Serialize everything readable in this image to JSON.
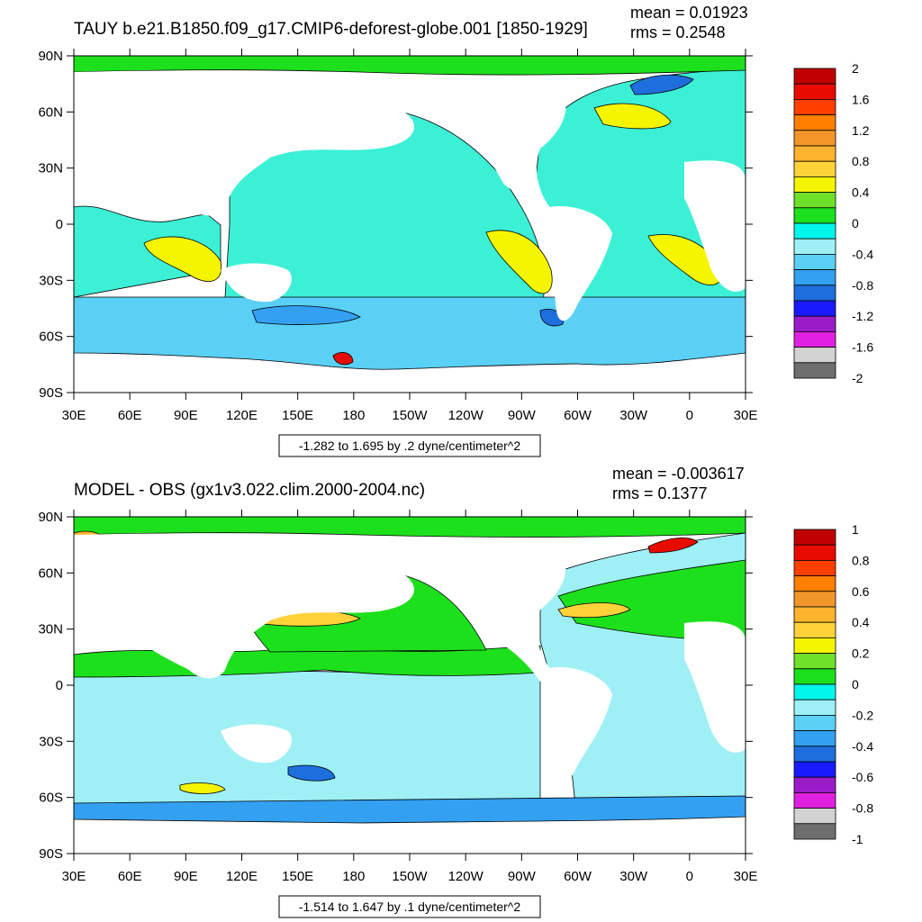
{
  "colors": {
    "scale": [
      "#6e6e6e",
      "#d2d2d2",
      "#e020e0",
      "#9a1cc8",
      "#1a1aff",
      "#1e6edd",
      "#33a0f2",
      "#5ad0f5",
      "#9ef0f5",
      "#00f5eb",
      "#1de01d",
      "#6fe12a",
      "#f5f500",
      "#ffd23a",
      "#fbb42e",
      "#f3962a",
      "#ff7f00",
      "#ff3f00",
      "#e80c00",
      "#c00000"
    ],
    "ocean": "#3cf0d6",
    "land": "#ffffff"
  },
  "panels": [
    {
      "title": "TAUY b.e21.B1850.f09_g17.CMIP6-deforest-globe.001 [1850-1929]",
      "mean": "mean = 0.01923",
      "rms": "rms = 0.2548",
      "range_label": "-1.282 to 1.695 by .2 dyne/centimeter^2",
      "colorbar_labels": [
        "2",
        "1.6",
        "1.2",
        "0.8",
        "0.4",
        "0",
        "-0.4",
        "-0.8",
        "-1.2",
        "-1.6",
        "-2"
      ]
    },
    {
      "title": "MODEL - OBS (gx1v3.022.clim.2000-2004.nc)",
      "mean": "mean = -0.003617",
      "rms": "rms = 0.1377",
      "range_label": "-1.514 to 1.647 by .1 dyne/centimeter^2",
      "colorbar_labels": [
        "1",
        "0.8",
        "0.6",
        "0.4",
        "0.2",
        "0",
        "-0.2",
        "-0.4",
        "-0.6",
        "-0.8",
        "-1"
      ]
    }
  ],
  "chart_data": [
    {
      "type": "heatmap",
      "title": "TAUY b.e21.B1850.f09_g17.CMIP6-deforest-globe.001 [1850-1929]",
      "variable": "TAUY",
      "units": "dyne/centimeter^2",
      "xticklabels": [
        "30E",
        "60E",
        "90E",
        "120E",
        "150E",
        "180",
        "150W",
        "120W",
        "90W",
        "60W",
        "30W",
        "0",
        "30E"
      ],
      "yticklabels": [
        "90N",
        "60N",
        "30N",
        "0",
        "30S",
        "60S",
        "90S"
      ],
      "xlim": [
        "30E",
        "30E"
      ],
      "ylim": [
        "90S",
        "90N"
      ],
      "contour_min": -1.282,
      "contour_max": 1.695,
      "contour_interval": 0.2,
      "colorbar_levels": [
        2,
        1.6,
        1.2,
        0.8,
        0.4,
        0,
        -0.4,
        -0.8,
        -1.2,
        -1.6,
        -2
      ],
      "mean": 0.01923,
      "rms": 0.2548
    },
    {
      "type": "heatmap",
      "title": "MODEL - OBS (gx1v3.022.clim.2000-2004.nc)",
      "units": "dyne/centimeter^2",
      "xticklabels": [
        "30E",
        "60E",
        "90E",
        "120E",
        "150E",
        "180",
        "150W",
        "120W",
        "90W",
        "60W",
        "30W",
        "0",
        "30E"
      ],
      "yticklabels": [
        "90N",
        "60N",
        "30N",
        "0",
        "30S",
        "60S",
        "90S"
      ],
      "xlim": [
        "30E",
        "30E"
      ],
      "ylim": [
        "90S",
        "90N"
      ],
      "contour_min": -1.514,
      "contour_max": 1.647,
      "contour_interval": 0.1,
      "colorbar_levels": [
        1,
        0.8,
        0.6,
        0.4,
        0.2,
        0,
        -0.2,
        -0.4,
        -0.6,
        -0.8,
        -1
      ],
      "mean": -0.003617,
      "rms": 0.1377
    }
  ]
}
